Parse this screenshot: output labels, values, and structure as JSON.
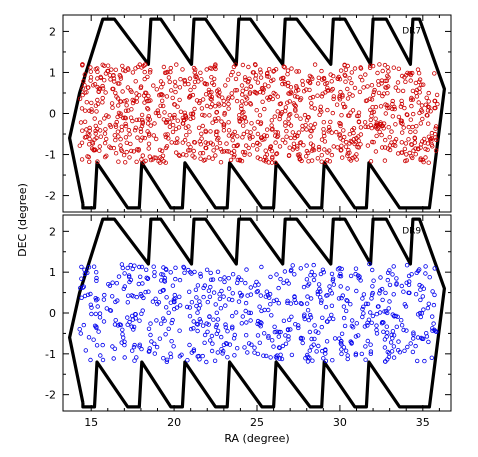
{
  "chart_data": [
    {
      "type": "scatter",
      "panel_label": "DR7",
      "marker_color": "#cc0000",
      "marker_shape": "open circle",
      "point_count": 1150,
      "y_band": [
        -1.2,
        1.2
      ],
      "xlabel": "RA (degree)",
      "ylabel": "DEC (degree)",
      "xlim": [
        13.3,
        36.7
      ],
      "ylim": [
        -2.4,
        2.4
      ],
      "xticks": [
        "15",
        "20",
        "25",
        "30",
        "35"
      ],
      "yticks": [
        "-2",
        "-1",
        "0",
        "1",
        "2"
      ]
    },
    {
      "type": "scatter",
      "panel_label": "DR9",
      "marker_color": "#0000ee",
      "marker_shape": "open circle",
      "point_count": 700,
      "y_band": [
        -1.2,
        1.2
      ],
      "xlabel": "RA (degree)",
      "ylabel": "DEC (degree)",
      "xlim": [
        13.3,
        36.7
      ],
      "ylim": [
        -2.4,
        2.4
      ],
      "xticks": [
        "15",
        "20",
        "25",
        "30",
        "35"
      ],
      "yticks": [
        "-2",
        "-1",
        "0",
        "1",
        "2"
      ]
    }
  ],
  "footprint_outline": {
    "color": "#000000",
    "lower_left": [
      [
        14.5,
        -2.2
      ],
      [
        13.7,
        -0.6
      ],
      [
        14.3,
        0.5
      ]
    ],
    "lower_upper_y": 2.3,
    "lower_apex_y": 1.2,
    "lower_left_top": [
      15.7,
      2.3
    ],
    "lower_right_top": [
      34.8,
      2.3
    ],
    "lower_right": [
      [
        34.8,
        2.3
      ],
      [
        36.3,
        0.6
      ],
      [
        35.4,
        -2.3
      ]
    ],
    "top_teeth_x": [
      [
        15.7,
        16.4
      ],
      [
        18.6,
        19.2
      ],
      [
        21.2,
        21.9
      ],
      [
        23.9,
        24.6
      ],
      [
        26.7,
        27.4
      ],
      [
        29.6,
        30.3
      ],
      [
        32.0,
        32.8
      ],
      [
        34.4,
        34.8
      ]
    ],
    "bottom_teeth_x": [
      [
        14.5,
        15.2
      ],
      [
        17.2,
        17.9
      ],
      [
        19.8,
        20.5
      ],
      [
        22.5,
        23.2
      ],
      [
        25.3,
        26.0
      ],
      [
        28.2,
        28.9
      ],
      [
        30.9,
        31.6
      ],
      [
        33.6,
        34.3
      ]
    ]
  },
  "shared": {
    "xlabel": "RA (degree)",
    "ylabel": "DEC (degree)"
  }
}
